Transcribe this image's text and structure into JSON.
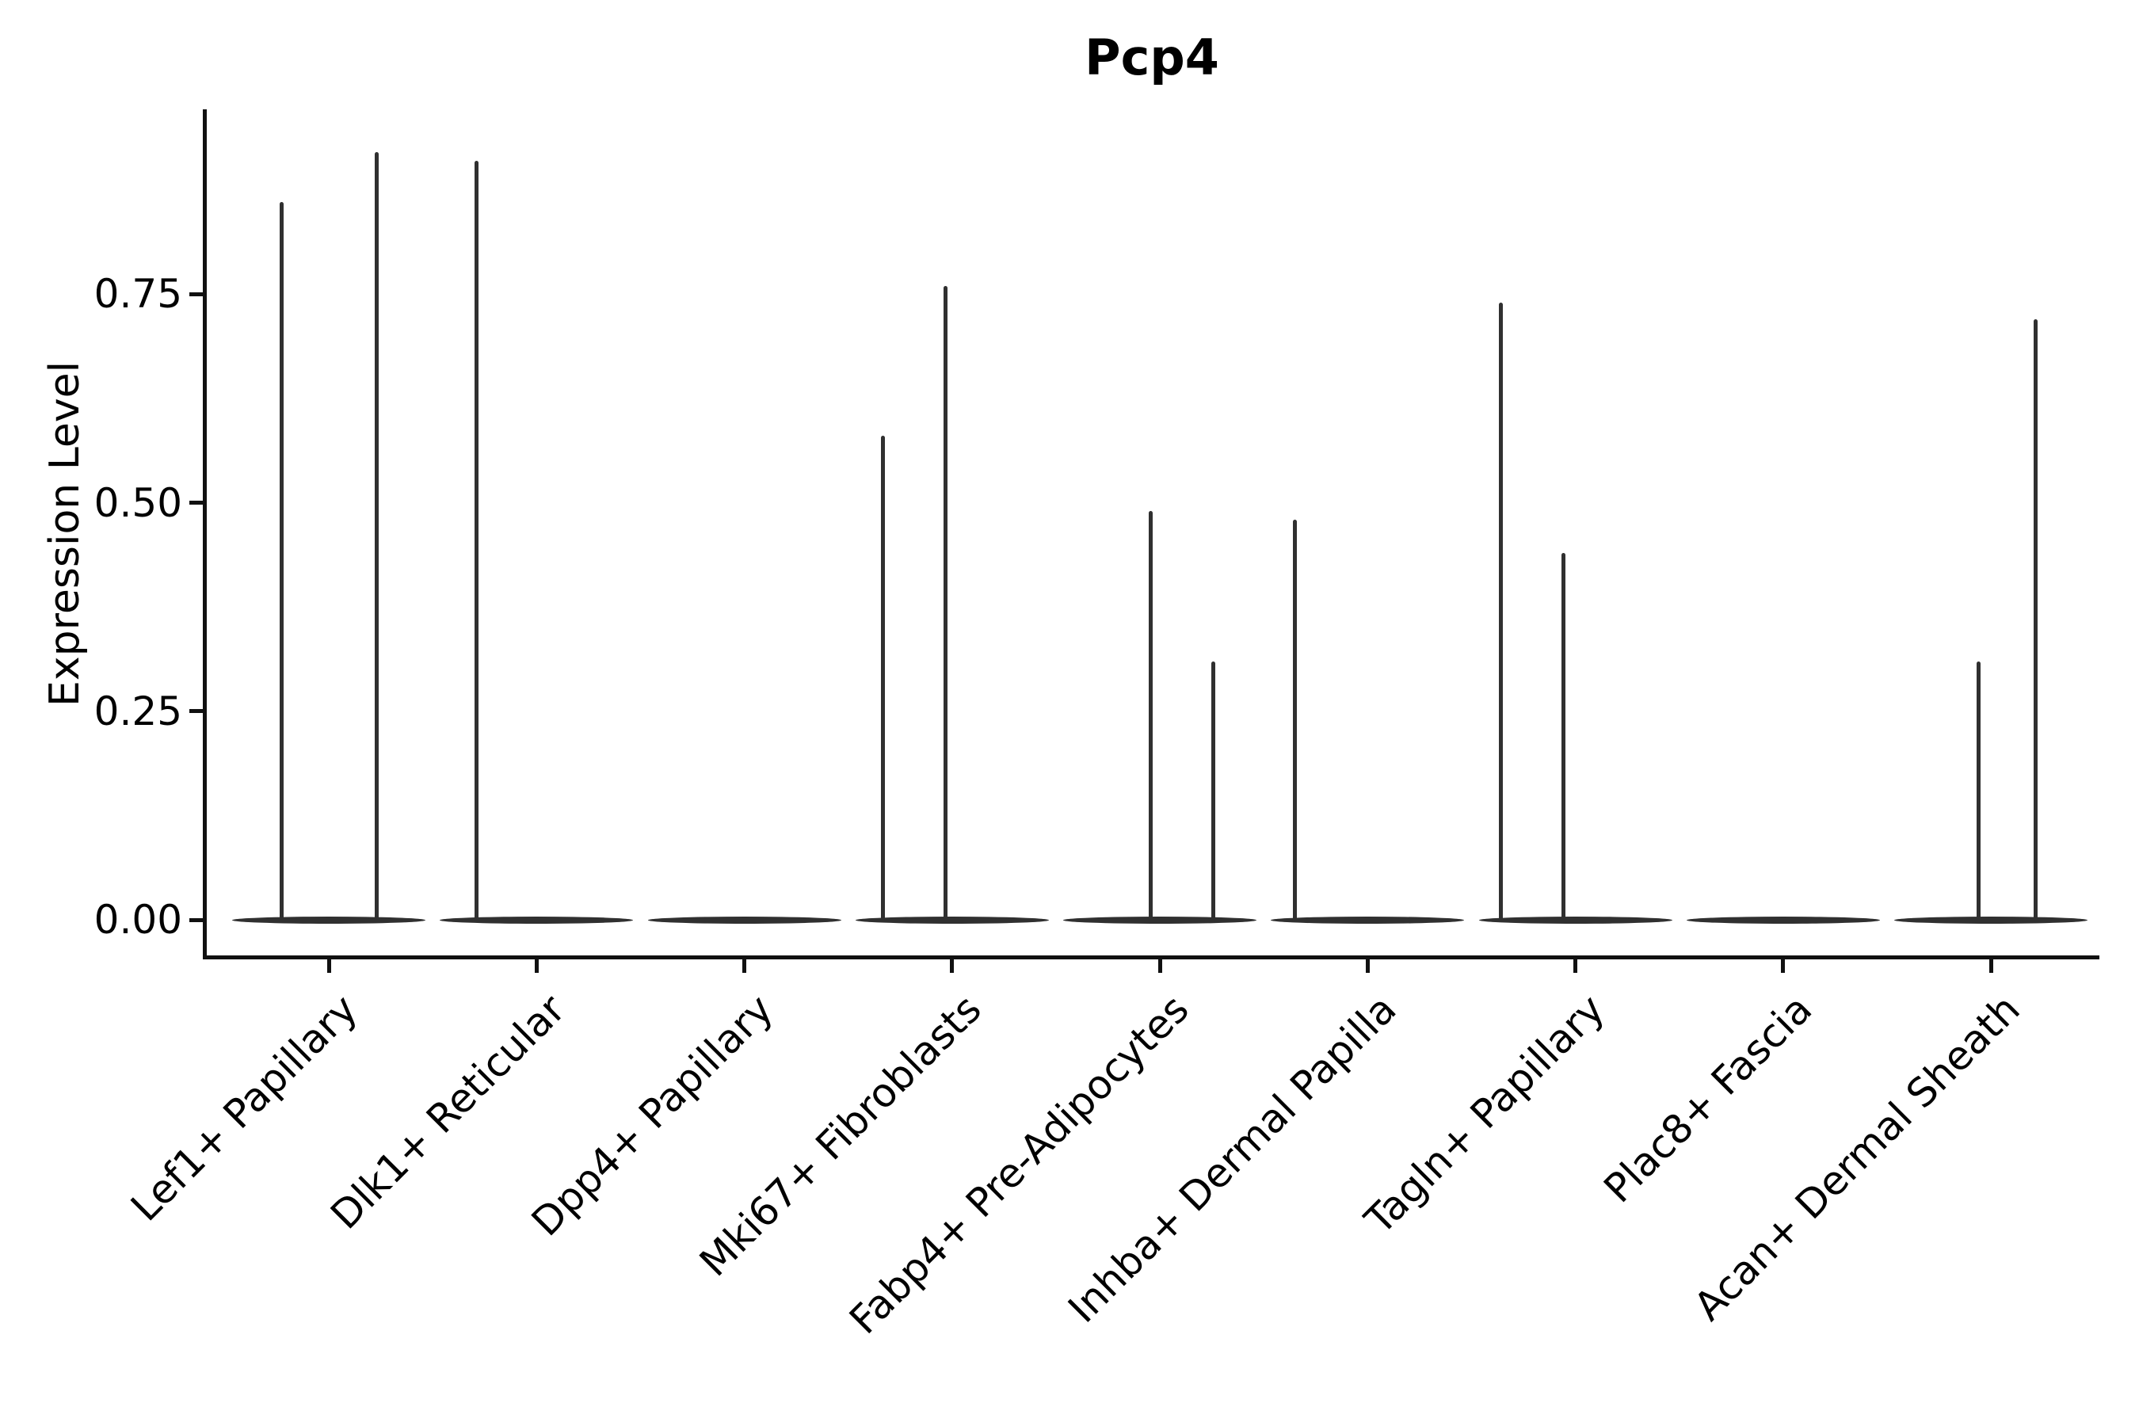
{
  "chart_data": {
    "type": "violin",
    "title": "Pcp4",
    "ylabel": "Expression Level",
    "xlabel": "",
    "ytick_labels": [
      "0.00",
      "0.25",
      "0.50",
      "0.75"
    ],
    "ytick_values": [
      0,
      0.25,
      0.5,
      0.75
    ],
    "ylim": [
      -0.046,
      0.97
    ],
    "grid": false,
    "legend": "none",
    "categories": [
      "Lef1+ Papillary",
      "Dlk1+ Reticular",
      "Dpp4+ Papillary",
      "Mki67+ Fibroblasts",
      "Fabp4+ Pre-Adipocytes",
      "Inhba+ Dermal Papilla",
      "Tagln+ Papillary",
      "Plac8+ Fascia",
      "Acan+ Dermal Sheath"
    ],
    "series": [
      {
        "name": "Lef1+ Papillary",
        "baseline_density": 0.93,
        "spikes": [
          {
            "offset": -0.225,
            "peak": 0.86
          },
          {
            "offset": 0.229,
            "peak": 0.92
          }
        ]
      },
      {
        "name": "Dlk1+ Reticular",
        "baseline_density": 0.93,
        "spikes": [
          {
            "offset": -0.29,
            "peak": 0.91
          }
        ]
      },
      {
        "name": "Dpp4+ Papillary",
        "baseline_density": 0.93,
        "spikes": []
      },
      {
        "name": "Mki67+ Fibroblasts",
        "baseline_density": 0.93,
        "spikes": [
          {
            "offset": -0.331,
            "peak": 0.58
          },
          {
            "offset": -0.03,
            "peak": 0.76
          }
        ]
      },
      {
        "name": "Fabp4+ Pre-Adipocytes",
        "baseline_density": 0.93,
        "spikes": [
          {
            "offset": -0.042,
            "peak": 0.49
          },
          {
            "offset": 0.256,
            "peak": 0.31
          }
        ]
      },
      {
        "name": "Inhba+ Dermal Papilla",
        "baseline_density": 0.93,
        "spikes": [
          {
            "offset": -0.348,
            "peak": 0.48
          }
        ]
      },
      {
        "name": "Tagln+ Papillary",
        "baseline_density": 0.93,
        "spikes": [
          {
            "offset": -0.36,
            "peak": 0.74
          },
          {
            "offset": -0.059,
            "peak": 0.44
          }
        ]
      },
      {
        "name": "Plac8+ Fascia",
        "baseline_density": 0.93,
        "spikes": []
      },
      {
        "name": "Acan+ Dermal Sheath",
        "baseline_density": 0.93,
        "spikes": [
          {
            "offset": -0.061,
            "peak": 0.31
          },
          {
            "offset": 0.217,
            "peak": 0.72
          }
        ]
      }
    ],
    "style": {
      "violin_color": "#303030",
      "axis_color": "#111111",
      "text_color": "#000000",
      "background": "#ffffff"
    }
  }
}
